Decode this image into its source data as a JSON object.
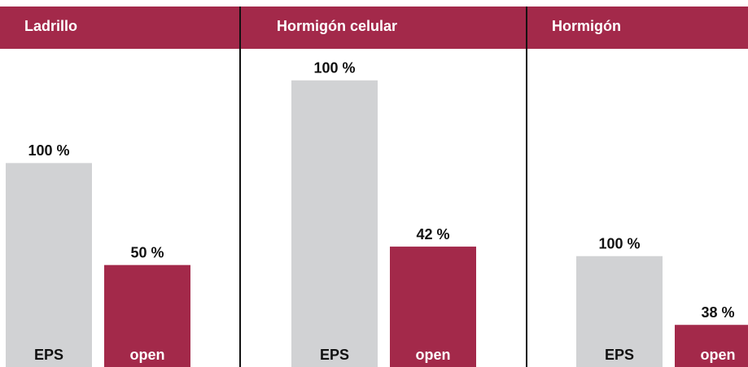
{
  "chart_data": [
    {
      "type": "bar",
      "title": "Ladrillo",
      "categories": [
        "EPS",
        "open"
      ],
      "values": [
        100,
        50
      ],
      "value_labels": [
        "100 %",
        "50 %"
      ],
      "colors": [
        "#d1d2d4",
        "#a3294a"
      ],
      "ylim": [
        0,
        156
      ]
    },
    {
      "type": "bar",
      "title": "Hormigón celular",
      "categories": [
        "EPS",
        "open"
      ],
      "values": [
        100,
        42
      ],
      "value_labels": [
        "100 %",
        "42 %"
      ],
      "colors": [
        "#d1d2d4",
        "#a3294a"
      ],
      "ylim": [
        0,
        111
      ]
    },
    {
      "type": "bar",
      "title": "Hormigón",
      "categories": [
        "EPS",
        "open"
      ],
      "values": [
        100,
        38
      ],
      "value_labels": [
        "100 %",
        "38 %"
      ],
      "colors": [
        "#d1d2d4",
        "#a3294a"
      ],
      "ylim": [
        0,
        287
      ]
    }
  ]
}
